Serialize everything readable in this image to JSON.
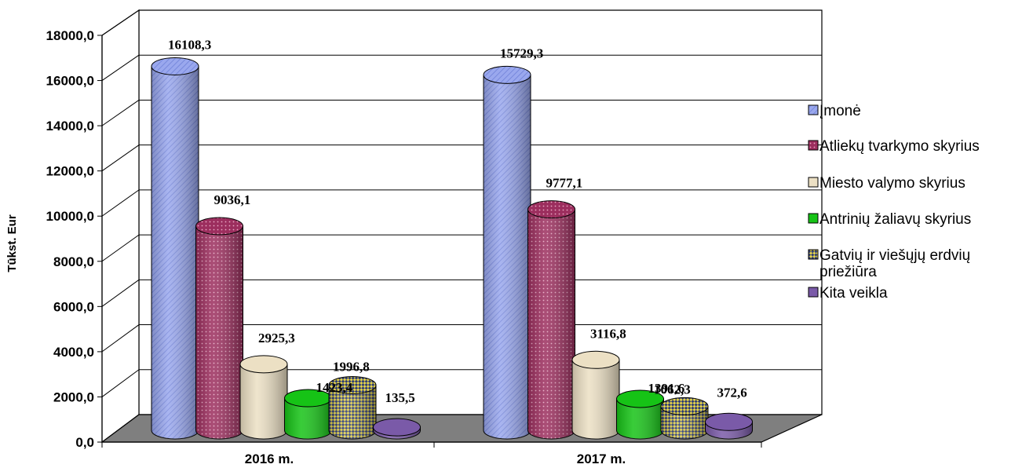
{
  "chart_data": {
    "type": "bar",
    "style": "3d-cylinder",
    "ylabel": "Tūkst. Eur",
    "ylim": [
      0,
      18000
    ],
    "y_ticks": [
      "0,0",
      "2000,0",
      "4000,0",
      "6000,0",
      "8000,0",
      "10000,0",
      "12000,0",
      "14000,0",
      "16000,0",
      "18000,0"
    ],
    "categories": [
      "2016 m.",
      "2017 m."
    ],
    "grid": true,
    "legend_position": "right",
    "series": [
      {
        "name": "Įmonė",
        "values": [
          16108.3,
          15729.3
        ],
        "labels": [
          "16108,3",
          "15729,3"
        ],
        "color": "#9aa8ee",
        "pattern": "diag"
      },
      {
        "name": "Atliekų tvarkymo skyrius",
        "values": [
          9036.1,
          9777.1
        ],
        "labels": [
          "9036,1",
          "9777,1"
        ],
        "color": "#9c2e5e",
        "pattern": "dots"
      },
      {
        "name": "Miesto valymo skyrius",
        "values": [
          2925.3,
          3116.8
        ],
        "labels": [
          "2925,3",
          "3116,8"
        ],
        "color": "#ece0c4",
        "pattern": "none"
      },
      {
        "name": "Antrinių žaliavų skyrius",
        "values": [
          1423.4,
          1391.6
        ],
        "labels": [
          "1423,4",
          "1391,6"
        ],
        "color": "#16c316",
        "pattern": "none"
      },
      {
        "name": "Gatvių ir viešųjų erdvių priežiūra",
        "values": [
          1996.8,
          1062.3
        ],
        "labels": [
          "1996,8",
          "1062,3"
        ],
        "color": "#e3d24a",
        "pattern": "check"
      },
      {
        "name": "Kita veikla",
        "values": [
          135.5,
          372.6
        ],
        "labels": [
          "135,5",
          "372,6"
        ],
        "color": "#7a5aa8",
        "pattern": "none"
      }
    ]
  }
}
